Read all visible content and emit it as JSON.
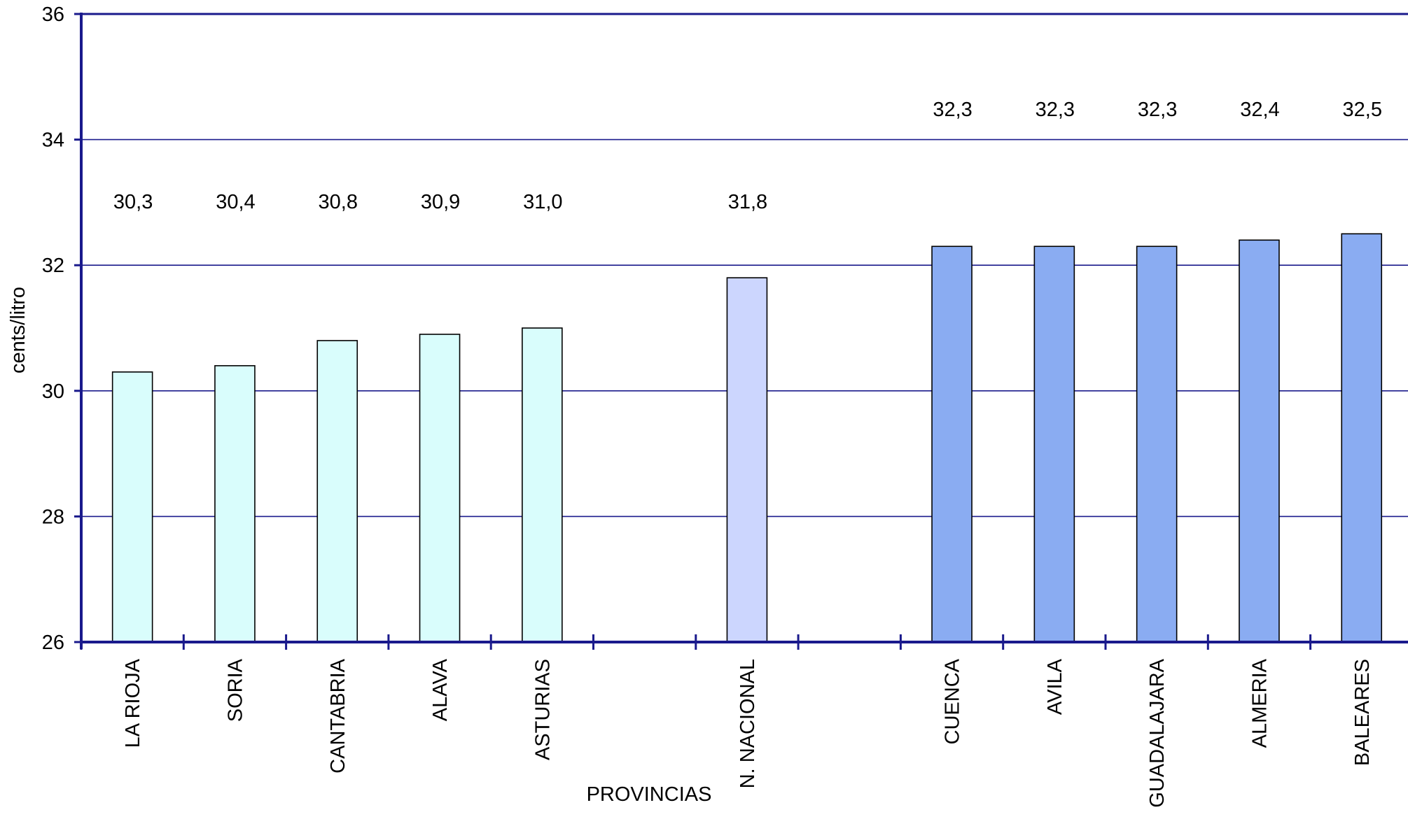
{
  "chart_data": {
    "type": "bar",
    "title": "",
    "xlabel": "PROVINCIAS",
    "ylabel": "cents/litro",
    "ylim": [
      26,
      36
    ],
    "yticks": [
      "26",
      "28",
      "30",
      "32",
      "34",
      "36"
    ],
    "grid": true,
    "legend": "none",
    "categories": [
      "LA RIOJA",
      "SORIA",
      "CANTABRIA",
      "ALAVA",
      "ASTURIAS",
      "",
      "N. NACIONAL",
      "",
      "CUENCA",
      "AVILA",
      "GUADALAJARA",
      "ALMERIA",
      "BALEARES"
    ],
    "series": [
      {
        "values": [
          30.3,
          30.4,
          30.8,
          30.9,
          31.0,
          null,
          31.8,
          null,
          32.3,
          32.3,
          32.3,
          32.4,
          32.5
        ],
        "labels": [
          "30,3",
          "30,4",
          "30,8",
          "30,9",
          "31,0",
          "",
          "31,8",
          "",
          "32,3",
          "32,3",
          "32,3",
          "32,4",
          "32,5"
        ]
      }
    ],
    "colors": {
      "low_group": "#d9fdfc",
      "national": "#ccd6fe",
      "high_group": "#8aacf2",
      "axis": "#1a1a8c",
      "grid": "#1a1a8c",
      "bar_outline": "#000000"
    }
  }
}
